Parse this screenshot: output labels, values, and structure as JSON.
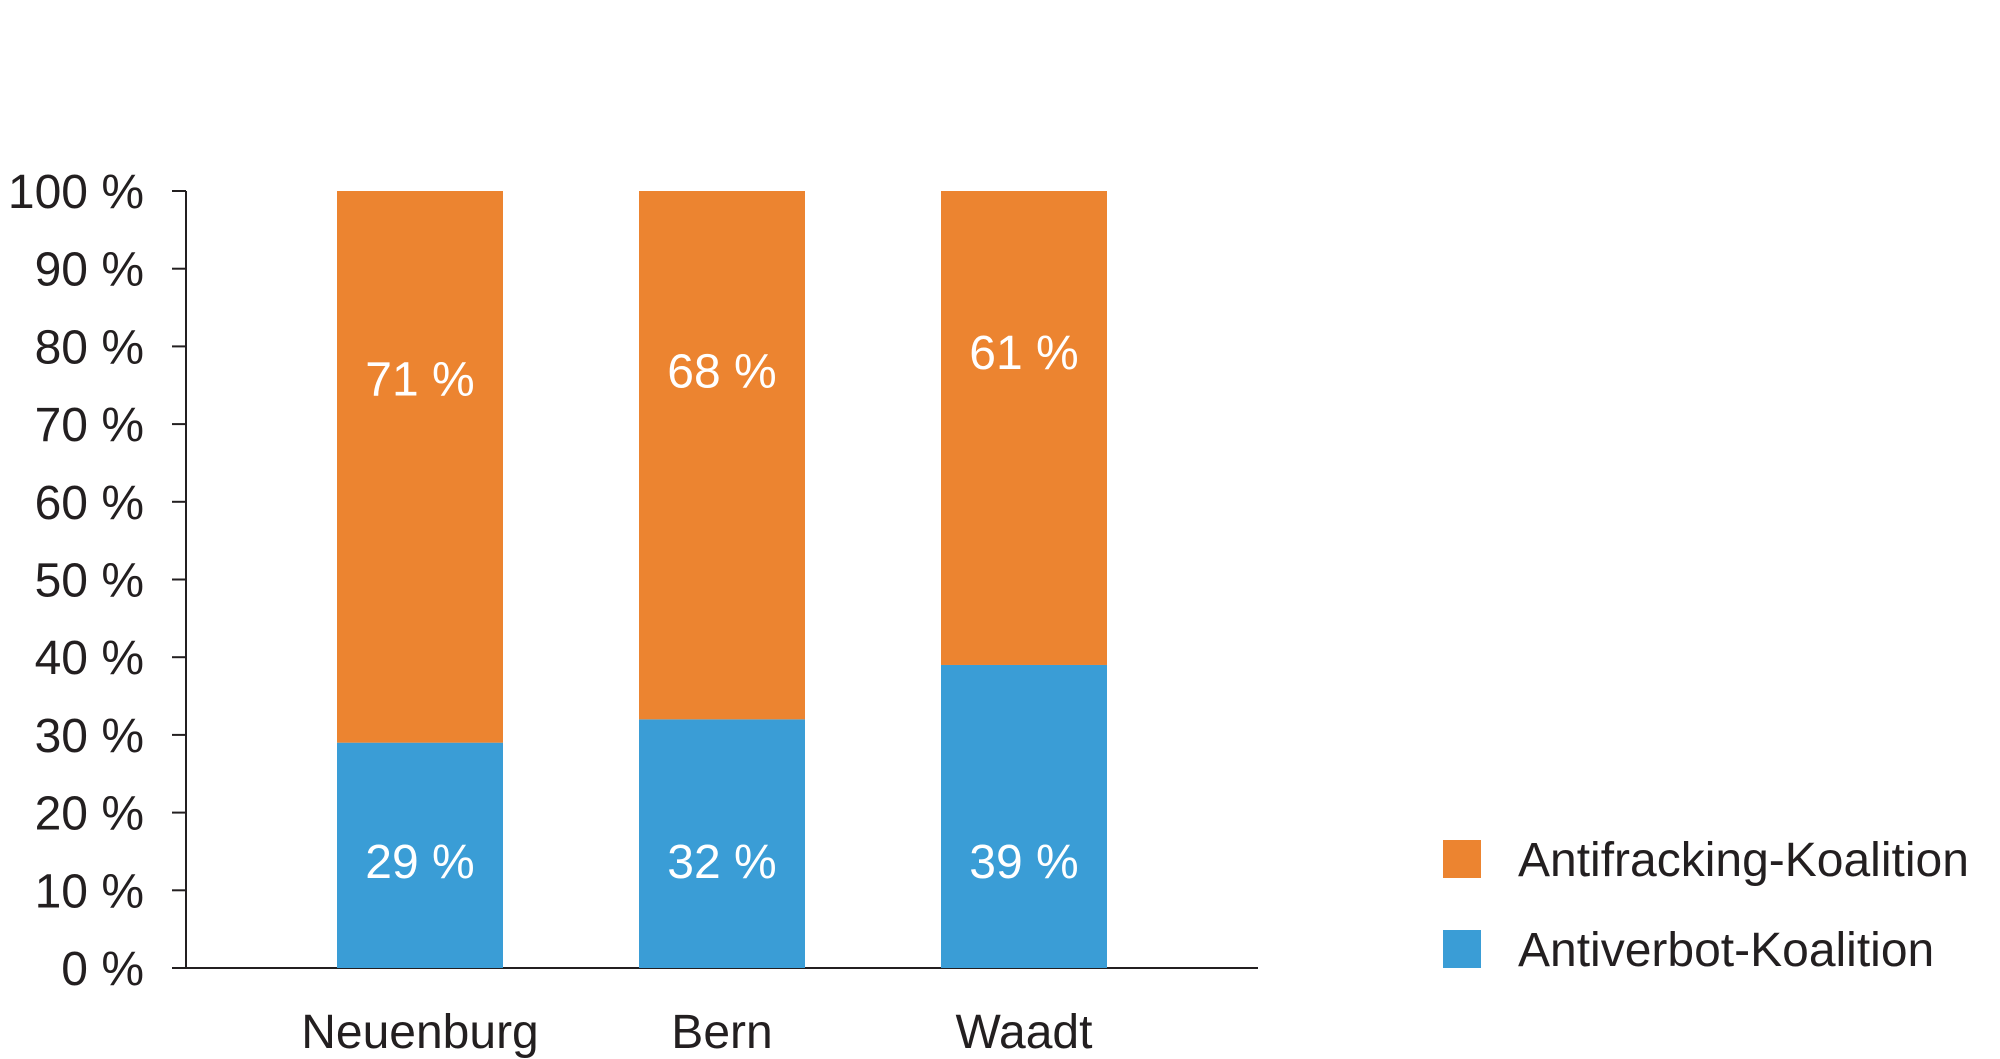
{
  "chart_data": {
    "type": "bar",
    "stacked": true,
    "categories": [
      "Neuenburg",
      "Bern",
      "Waadt"
    ],
    "series": [
      {
        "name": "Antiverbot-Koalition",
        "values": [
          29,
          32,
          39
        ],
        "labels": [
          "29 %",
          "32 %",
          "39 %"
        ],
        "color": "#3a9dd6"
      },
      {
        "name": "Antifracking-Koalition",
        "values": [
          71,
          68,
          61
        ],
        "labels": [
          "71 %",
          "68 %",
          "61 %"
        ],
        "color": "#ec8430"
      }
    ],
    "ylim": [
      0,
      100
    ],
    "yticks": [
      0,
      10,
      20,
      30,
      40,
      50,
      60,
      70,
      80,
      90,
      100
    ],
    "ytick_labels": [
      "0 %",
      "10 %",
      "20 %",
      "30 %",
      "40 %",
      "50 %",
      "60 %",
      "70 %",
      "80 %",
      "90 %",
      "100 %"
    ],
    "legend": {
      "placement": "bottom-right",
      "order": [
        "Antifracking-Koalition",
        "Antiverbot-Koalition"
      ]
    },
    "grid": false
  }
}
